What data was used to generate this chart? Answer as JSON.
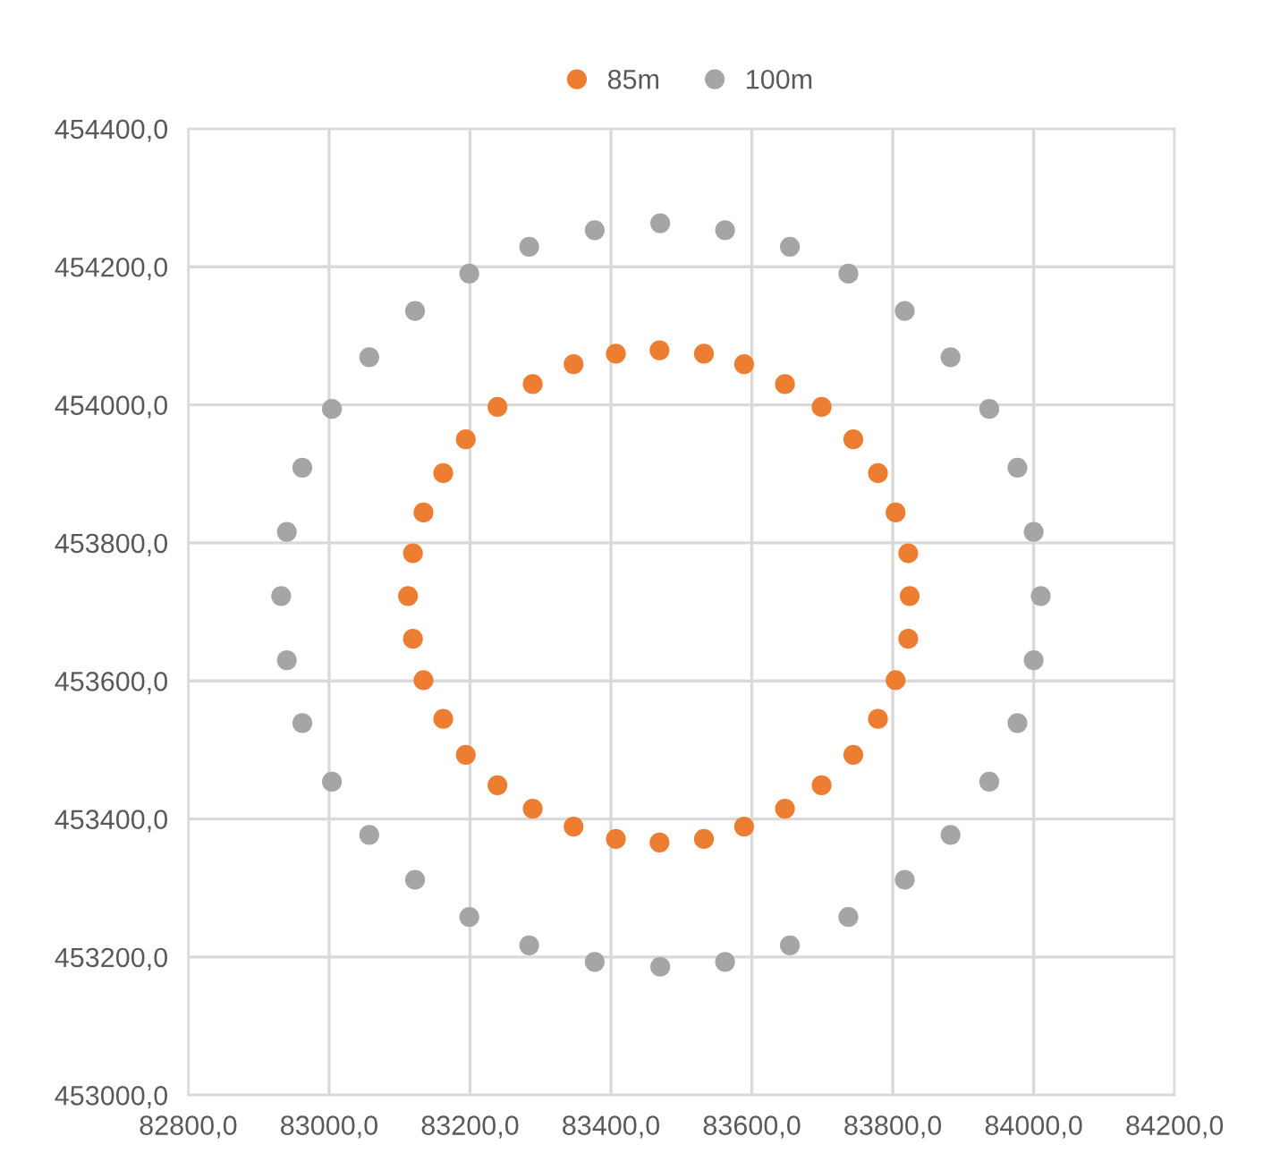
{
  "chart_data": {
    "type": "scatter",
    "legend": "top",
    "grid": true,
    "marker": "circle",
    "xlim": [
      82800,
      84200
    ],
    "xticks": [
      {
        "value": 82800,
        "label": "82800,0"
      },
      {
        "value": 83000,
        "label": "83000,0"
      },
      {
        "value": 83200,
        "label": "83200,0"
      },
      {
        "value": 83400,
        "label": "83400,0"
      },
      {
        "value": 83600,
        "label": "83600,0"
      },
      {
        "value": 83800,
        "label": "83800,0"
      },
      {
        "value": 84000,
        "label": "84000,0"
      },
      {
        "value": 84200,
        "label": "84200,0"
      }
    ],
    "ylim": [
      453000,
      454400
    ],
    "yticks": [
      {
        "value": 453000,
        "label": "453000,0"
      },
      {
        "value": 453200,
        "label": "453200,0"
      },
      {
        "value": 453400,
        "label": "453400,0"
      },
      {
        "value": 453600,
        "label": "453600,0"
      },
      {
        "value": 453800,
        "label": "453800,0"
      },
      {
        "value": 454000,
        "label": "454000,0"
      },
      {
        "value": 454200,
        "label": "454200,0"
      },
      {
        "value": 454400,
        "label": "454400,0"
      }
    ],
    "series": [
      {
        "name": "85m",
        "color": "#ed7d31",
        "x": [
          83469,
          83532,
          83589,
          83647,
          83699,
          83744,
          83779,
          83804,
          83822,
          83824,
          83822,
          83804,
          83779,
          83744,
          83699,
          83647,
          83589,
          83532,
          83469,
          83407,
          83347,
          83289,
          83239,
          83194,
          83162,
          83134,
          83119,
          83112,
          83119,
          83134,
          83162,
          83194,
          83239,
          83289,
          83347,
          83407
        ],
        "values": [
          454079,
          454074,
          454059,
          454030,
          453997,
          453950,
          453901,
          453844,
          453785,
          453723,
          453661,
          453601,
          453545,
          453493,
          453449,
          453415,
          453389,
          453371,
          453366,
          453371,
          453389,
          453415,
          453449,
          453493,
          453545,
          453601,
          453661,
          453723,
          453785,
          453844,
          453901,
          453950,
          453997,
          454030,
          454059,
          454074
        ]
      },
      {
        "name": "100m",
        "color": "#a5a5a5",
        "x": [
          83470,
          83562,
          83654,
          83737,
          83817,
          83882,
          83937,
          83977,
          84000,
          84010,
          84000,
          83977,
          83937,
          83882,
          83817,
          83737,
          83654,
          83562,
          83470,
          83377,
          83284,
          83199,
          83122,
          83057,
          83004,
          82962,
          82940,
          82932,
          82940,
          82962,
          83004,
          83057,
          83122,
          83199,
          83284,
          83377
        ],
        "values": [
          454263,
          454253,
          454229,
          454190,
          454136,
          454069,
          453994,
          453909,
          453816,
          453723,
          453630,
          453539,
          453454,
          453377,
          453312,
          453258,
          453217,
          453193,
          453186,
          453193,
          453217,
          453258,
          453312,
          453377,
          453454,
          453539,
          453630,
          453723,
          453816,
          453909,
          453994,
          454069,
          454136,
          454190,
          454229,
          454253
        ]
      }
    ]
  }
}
